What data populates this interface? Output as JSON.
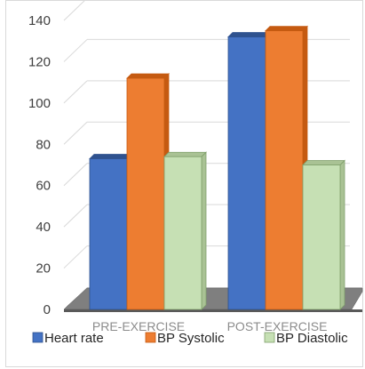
{
  "chart_data": {
    "type": "bar",
    "title": "",
    "xlabel": "",
    "ylabel": "",
    "categories": [
      "PRE-EXERCISE",
      "POST-EXERCISE"
    ],
    "series": [
      {
        "name": "Heart rate",
        "values": [
          73,
          132
        ]
      },
      {
        "name": "BP Systolic",
        "values": [
          112,
          135
        ]
      },
      {
        "name": "BP Diastolic",
        "values": [
          74,
          70
        ]
      }
    ],
    "ylim": [
      0,
      140
    ],
    "yticks": [
      "0",
      "20",
      "40",
      "60",
      "80",
      "100",
      "120",
      "140"
    ],
    "grid": true,
    "legend_position": "bottom",
    "style": "3d-clustered-column",
    "colors": {
      "series": [
        "#4472c4",
        "#ed7d31",
        "#c6e0b4"
      ],
      "series_dark": [
        "#2f528f",
        "#c55a11",
        "#a9c294"
      ],
      "series_stroke": [
        "#2f528f",
        "#c55a11",
        "#7f9f6b"
      ],
      "gridline": "#d9d9d9",
      "floor": "#7f7f7f",
      "floor_edge": "#595959"
    }
  }
}
